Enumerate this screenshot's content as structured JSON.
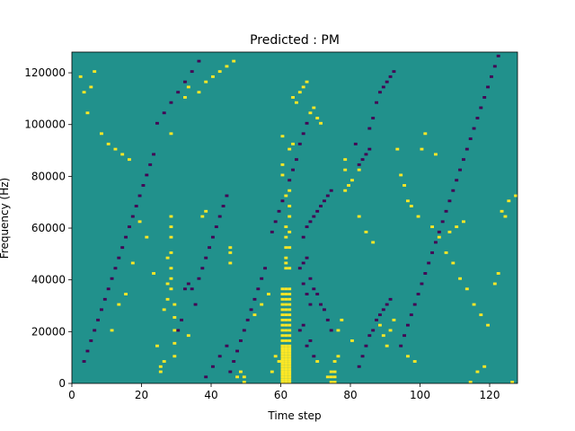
{
  "chart_data": {
    "type": "heatmap",
    "title": "Predicted : PM",
    "xlabel": "Time step",
    "ylabel": "Frequency (Hz)",
    "xlim": [
      0,
      128
    ],
    "ylim": [
      0,
      128000
    ],
    "x_ticks": [
      0,
      20,
      40,
      60,
      80,
      100,
      120
    ],
    "y_ticks": [
      0,
      20000,
      40000,
      60000,
      80000,
      100000,
      120000
    ],
    "x_tick_labels": [
      "0",
      "20",
      "40",
      "60",
      "80",
      "100",
      "120"
    ],
    "y_tick_labels": [
      "0",
      "20000",
      "40000",
      "60000",
      "80000",
      "100000",
      "120000"
    ],
    "grid": false,
    "colormap": "viridis",
    "value_levels": [
      -1,
      0,
      1
    ],
    "level_colors": [
      "#440154",
      "#21918c",
      "#fde725"
    ],
    "background_level": 0,
    "time_bins": 128,
    "freq_bins": 128,
    "freq_bin_hz": 1000,
    "cells": {
      "positive": [
        [
          60,
          0
        ],
        [
          60,
          1
        ],
        [
          60,
          2
        ],
        [
          60,
          3
        ],
        [
          60,
          4
        ],
        [
          60,
          5
        ],
        [
          60,
          6
        ],
        [
          60,
          7
        ],
        [
          60,
          8
        ],
        [
          60,
          9
        ],
        [
          60,
          10
        ],
        [
          60,
          11
        ],
        [
          60,
          12
        ],
        [
          60,
          13
        ],
        [
          61,
          0
        ],
        [
          61,
          1
        ],
        [
          61,
          2
        ],
        [
          61,
          3
        ],
        [
          61,
          4
        ],
        [
          61,
          5
        ],
        [
          61,
          6
        ],
        [
          61,
          7
        ],
        [
          61,
          8
        ],
        [
          61,
          9
        ],
        [
          61,
          10
        ],
        [
          61,
          11
        ],
        [
          61,
          12
        ],
        [
          61,
          13
        ],
        [
          62,
          0
        ],
        [
          62,
          1
        ],
        [
          62,
          2
        ],
        [
          62,
          3
        ],
        [
          62,
          4
        ],
        [
          62,
          5
        ],
        [
          62,
          6
        ],
        [
          62,
          7
        ],
        [
          62,
          8
        ],
        [
          62,
          9
        ],
        [
          62,
          10
        ],
        [
          62,
          11
        ],
        [
          62,
          12
        ],
        [
          62,
          13
        ],
        [
          60,
          14
        ],
        [
          60,
          16
        ],
        [
          60,
          18
        ],
        [
          60,
          20
        ],
        [
          60,
          22
        ],
        [
          60,
          24
        ],
        [
          60,
          26
        ],
        [
          60,
          28
        ],
        [
          60,
          30
        ],
        [
          60,
          32
        ],
        [
          60,
          34
        ],
        [
          60,
          36
        ],
        [
          61,
          14
        ],
        [
          61,
          16
        ],
        [
          61,
          18
        ],
        [
          61,
          20
        ],
        [
          61,
          22
        ],
        [
          61,
          24
        ],
        [
          61,
          26
        ],
        [
          61,
          28
        ],
        [
          61,
          30
        ],
        [
          61,
          32
        ],
        [
          61,
          34
        ],
        [
          61,
          36
        ],
        [
          62,
          14
        ],
        [
          62,
          16
        ],
        [
          62,
          18
        ],
        [
          62,
          20
        ],
        [
          62,
          22
        ],
        [
          62,
          24
        ],
        [
          62,
          26
        ],
        [
          62,
          28
        ],
        [
          62,
          30
        ],
        [
          62,
          32
        ],
        [
          62,
          34
        ],
        [
          62,
          36
        ],
        [
          61,
          44
        ],
        [
          61,
          46
        ],
        [
          61,
          48
        ],
        [
          61,
          52
        ],
        [
          61,
          56
        ],
        [
          61,
          60
        ],
        [
          62,
          44
        ],
        [
          62,
          52
        ],
        [
          62,
          58
        ],
        [
          62,
          64
        ],
        [
          62,
          68
        ],
        [
          61,
          72
        ],
        [
          62,
          74
        ],
        [
          60,
          80
        ],
        [
          60,
          84
        ],
        [
          62,
          90
        ],
        [
          60,
          95
        ],
        [
          63,
          92
        ],
        [
          29,
          10
        ],
        [
          29,
          15
        ],
        [
          29,
          20
        ],
        [
          29,
          25
        ],
        [
          29,
          30
        ],
        [
          28,
          36
        ],
        [
          28,
          40
        ],
        [
          28,
          44
        ],
        [
          28,
          50
        ],
        [
          28,
          56
        ],
        [
          28,
          60
        ],
        [
          28,
          64
        ],
        [
          27,
          32
        ],
        [
          27,
          38
        ],
        [
          27,
          48
        ],
        [
          24,
          14
        ],
        [
          25,
          4
        ],
        [
          25,
          6
        ],
        [
          26,
          8
        ],
        [
          33,
          18
        ],
        [
          37,
          64
        ],
        [
          38,
          66
        ],
        [
          45,
          50
        ],
        [
          45,
          52
        ],
        [
          45,
          46
        ],
        [
          47,
          2
        ],
        [
          48,
          4
        ],
        [
          49,
          0
        ],
        [
          49,
          2
        ],
        [
          57,
          4
        ],
        [
          58,
          10
        ],
        [
          59,
          8
        ],
        [
          70,
          8
        ],
        [
          73,
          2
        ],
        [
          74,
          0
        ],
        [
          74,
          2
        ],
        [
          75,
          0
        ],
        [
          75,
          2
        ],
        [
          74,
          4
        ],
        [
          75,
          4
        ],
        [
          75,
          8
        ],
        [
          76,
          10
        ],
        [
          76,
          20
        ],
        [
          77,
          24
        ],
        [
          80,
          16
        ],
        [
          78,
          82
        ],
        [
          78,
          86
        ],
        [
          78,
          74
        ],
        [
          79,
          76
        ],
        [
          80,
          78
        ],
        [
          82,
          82
        ],
        [
          82,
          64
        ],
        [
          84,
          58
        ],
        [
          86,
          54
        ],
        [
          88,
          22
        ],
        [
          89,
          18
        ],
        [
          90,
          14
        ],
        [
          91,
          20
        ],
        [
          92,
          24
        ],
        [
          96,
          10
        ],
        [
          98,
          8
        ],
        [
          100,
          90
        ],
        [
          101,
          96
        ],
        [
          104,
          88
        ],
        [
          108,
          58
        ],
        [
          110,
          60
        ],
        [
          112,
          62
        ],
        [
          114,
          0
        ],
        [
          116,
          4
        ],
        [
          118,
          6
        ],
        [
          121,
          38
        ],
        [
          122,
          42
        ],
        [
          123,
          66
        ],
        [
          124,
          64
        ],
        [
          125,
          70
        ],
        [
          127,
          72
        ],
        [
          126,
          0
        ],
        [
          2,
          118
        ],
        [
          3,
          112
        ],
        [
          4,
          104
        ],
        [
          5,
          114
        ],
        [
          6,
          120
        ],
        [
          8,
          96
        ],
        [
          10,
          92
        ],
        [
          12,
          90
        ],
        [
          14,
          88
        ],
        [
          16,
          86
        ],
        [
          11,
          20
        ],
        [
          13,
          30
        ],
        [
          15,
          34
        ],
        [
          17,
          46
        ],
        [
          19,
          62
        ],
        [
          21,
          56
        ],
        [
          23,
          42
        ],
        [
          26,
          28
        ],
        [
          28,
          96
        ],
        [
          32,
          110
        ],
        [
          33,
          114
        ],
        [
          36,
          112
        ],
        [
          38,
          116
        ],
        [
          40,
          118
        ],
        [
          42,
          120
        ],
        [
          44,
          122
        ],
        [
          46,
          124
        ],
        [
          52,
          26
        ],
        [
          54,
          30
        ],
        [
          56,
          34
        ],
        [
          63,
          110
        ],
        [
          64,
          108
        ],
        [
          65,
          112
        ],
        [
          66,
          114
        ],
        [
          67,
          116
        ],
        [
          68,
          104
        ],
        [
          69,
          106
        ],
        [
          70,
          102
        ],
        [
          71,
          100
        ],
        [
          93,
          90
        ],
        [
          94,
          80
        ],
        [
          95,
          76
        ],
        [
          96,
          70
        ],
        [
          97,
          68
        ],
        [
          99,
          64
        ],
        [
          103,
          60
        ],
        [
          105,
          56
        ],
        [
          107,
          50
        ],
        [
          109,
          46
        ],
        [
          111,
          40
        ],
        [
          113,
          36
        ],
        [
          115,
          30
        ],
        [
          117,
          26
        ],
        [
          119,
          22
        ]
      ],
      "negative": [
        [
          30,
          20
        ],
        [
          31,
          24
        ],
        [
          32,
          36
        ],
        [
          33,
          38
        ],
        [
          34,
          36
        ],
        [
          35,
          30
        ],
        [
          36,
          40
        ],
        [
          37,
          44
        ],
        [
          38,
          48
        ],
        [
          39,
          52
        ],
        [
          40,
          56
        ],
        [
          41,
          60
        ],
        [
          42,
          64
        ],
        [
          43,
          68
        ],
        [
          44,
          72
        ],
        [
          65,
          44
        ],
        [
          66,
          46
        ],
        [
          67,
          48
        ],
        [
          68,
          40
        ],
        [
          69,
          36
        ],
        [
          70,
          34
        ],
        [
          71,
          30
        ],
        [
          72,
          28
        ],
        [
          73,
          24
        ],
        [
          74,
          20
        ],
        [
          65,
          20
        ],
        [
          66,
          22
        ],
        [
          67,
          14
        ],
        [
          68,
          16
        ],
        [
          69,
          10
        ],
        [
          66,
          56
        ],
        [
          67,
          60
        ],
        [
          68,
          62
        ],
        [
          69,
          64
        ],
        [
          70,
          66
        ],
        [
          71,
          68
        ],
        [
          72,
          70
        ],
        [
          73,
          72
        ],
        [
          74,
          74
        ],
        [
          66,
          38
        ],
        [
          67,
          34
        ],
        [
          68,
          30
        ],
        [
          82,
          6
        ],
        [
          83,
          10
        ],
        [
          84,
          14
        ],
        [
          85,
          18
        ],
        [
          86,
          20
        ],
        [
          87,
          24
        ],
        [
          88,
          26
        ],
        [
          89,
          28
        ],
        [
          90,
          30
        ],
        [
          91,
          32
        ],
        [
          82,
          84
        ],
        [
          83,
          86
        ],
        [
          84,
          88
        ],
        [
          85,
          90
        ],
        [
          81,
          92
        ],
        [
          85,
          98
        ],
        [
          86,
          102
        ],
        [
          87,
          108
        ],
        [
          88,
          112
        ],
        [
          89,
          114
        ],
        [
          90,
          116
        ],
        [
          91,
          118
        ],
        [
          92,
          120
        ],
        [
          3,
          8
        ],
        [
          4,
          12
        ],
        [
          5,
          16
        ],
        [
          6,
          20
        ],
        [
          7,
          24
        ],
        [
          8,
          28
        ],
        [
          9,
          32
        ],
        [
          10,
          36
        ],
        [
          11,
          40
        ],
        [
          12,
          44
        ],
        [
          13,
          48
        ],
        [
          14,
          52
        ],
        [
          15,
          56
        ],
        [
          16,
          60
        ],
        [
          17,
          64
        ],
        [
          18,
          68
        ],
        [
          19,
          72
        ],
        [
          20,
          76
        ],
        [
          21,
          80
        ],
        [
          22,
          84
        ],
        [
          23,
          88
        ],
        [
          45,
          4
        ],
        [
          46,
          8
        ],
        [
          47,
          12
        ],
        [
          48,
          16
        ],
        [
          49,
          20
        ],
        [
          50,
          24
        ],
        [
          51,
          28
        ],
        [
          52,
          32
        ],
        [
          53,
          36
        ],
        [
          54,
          40
        ],
        [
          55,
          44
        ],
        [
          57,
          58
        ],
        [
          58,
          62
        ],
        [
          59,
          66
        ],
        [
          60,
          70
        ],
        [
          62,
          78
        ],
        [
          63,
          82
        ],
        [
          64,
          86
        ],
        [
          65,
          92
        ],
        [
          66,
          96
        ],
        [
          67,
          100
        ],
        [
          94,
          14
        ],
        [
          95,
          18
        ],
        [
          96,
          22
        ],
        [
          97,
          26
        ],
        [
          98,
          30
        ],
        [
          99,
          34
        ],
        [
          100,
          38
        ],
        [
          101,
          42
        ],
        [
          102,
          46
        ],
        [
          103,
          50
        ],
        [
          104,
          54
        ],
        [
          105,
          58
        ],
        [
          106,
          62
        ],
        [
          107,
          66
        ],
        [
          108,
          70
        ],
        [
          109,
          74
        ],
        [
          110,
          78
        ],
        [
          111,
          82
        ],
        [
          112,
          86
        ],
        [
          113,
          90
        ],
        [
          114,
          94
        ],
        [
          115,
          98
        ],
        [
          116,
          102
        ],
        [
          117,
          106
        ],
        [
          118,
          110
        ],
        [
          119,
          114
        ],
        [
          120,
          118
        ],
        [
          121,
          122
        ],
        [
          122,
          126
        ],
        [
          24,
          100
        ],
        [
          26,
          104
        ],
        [
          28,
          108
        ],
        [
          30,
          112
        ],
        [
          32,
          116
        ],
        [
          34,
          120
        ],
        [
          36,
          124
        ],
        [
          38,
          2
        ],
        [
          40,
          6
        ],
        [
          42,
          10
        ],
        [
          44,
          14
        ]
      ]
    }
  },
  "title": "Predicted : PM"
}
